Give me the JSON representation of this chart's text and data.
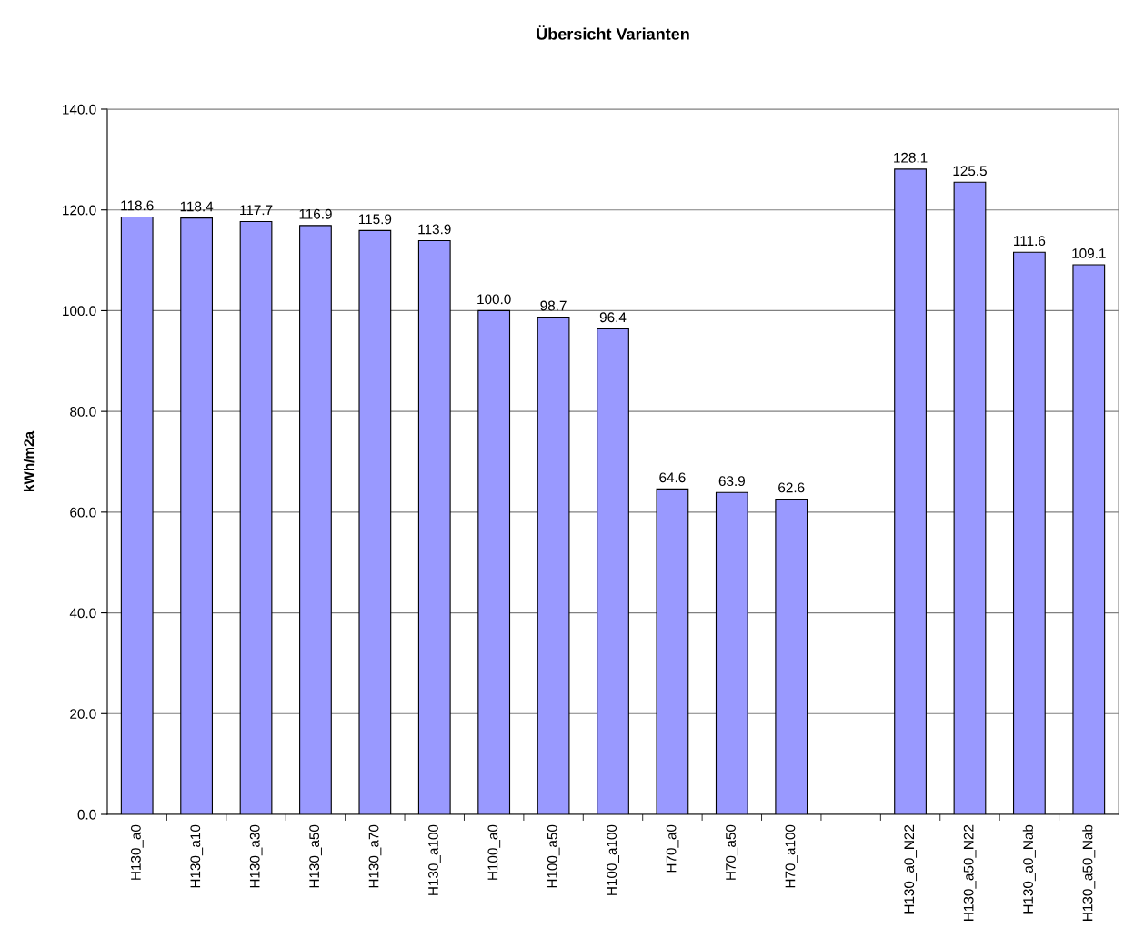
{
  "chart_data": {
    "type": "bar",
    "title": "Übersicht Varianten",
    "ylabel": "kWh/m2a",
    "categories": [
      "H130_a0",
      "H130_a10",
      "H130_a30",
      "H130_a50",
      "H130_a70",
      "H130_a100",
      "H100_a0",
      "H100_a50",
      "H100_a100",
      "H70_a0",
      "H70_a50",
      "H70_a100",
      null,
      "H130_a0_N22",
      "H130_a50_N22",
      "H130_a0_Nab",
      "H130_a50_Nab"
    ],
    "values": [
      118.6,
      118.4,
      117.7,
      116.9,
      115.9,
      113.9,
      100.0,
      98.7,
      96.4,
      64.6,
      63.9,
      62.6,
      null,
      128.1,
      125.5,
      111.6,
      109.1
    ],
    "value_labels": [
      "118.6",
      "118.4",
      "117.7",
      "116.9",
      "115.9",
      "113.9",
      "100.0",
      "98.7",
      "96.4",
      "64.6",
      "63.9",
      "62.6",
      null,
      "128.1",
      "125.5",
      "111.6",
      "109.1"
    ],
    "color": "#9999ff",
    "ylim": [
      0,
      140
    ],
    "yticks": [
      {
        "value": 0,
        "label": "0.0"
      },
      {
        "value": 20,
        "label": "20.0"
      },
      {
        "value": 40,
        "label": "40.0"
      },
      {
        "value": 60,
        "label": "60.0"
      },
      {
        "value": 80,
        "label": "80.0"
      },
      {
        "value": 100,
        "label": "100.0"
      },
      {
        "value": 120,
        "label": "120.0"
      },
      {
        "value": 140,
        "label": "140.0"
      }
    ],
    "grid": "y",
    "legend": false
  }
}
